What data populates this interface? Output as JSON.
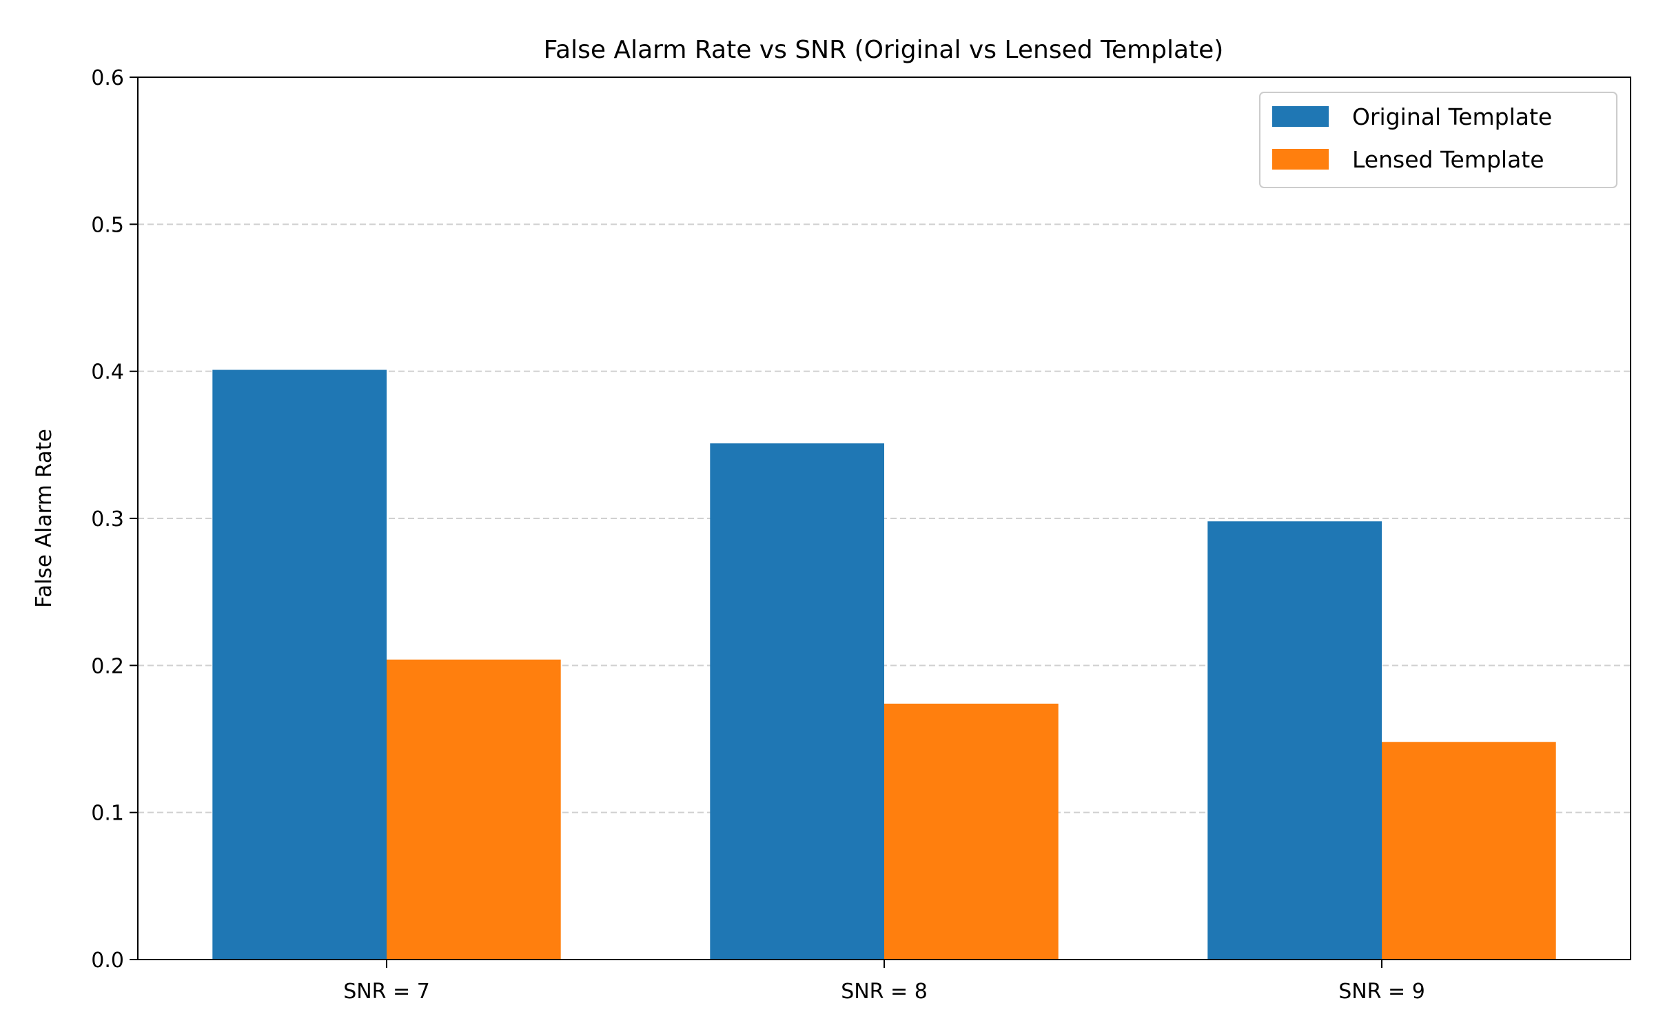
{
  "chart_data": {
    "type": "bar",
    "title": "False Alarm Rate vs SNR (Original vs Lensed Template)",
    "xlabel": "",
    "ylabel": "False Alarm Rate",
    "categories": [
      "SNR = 7",
      "SNR = 8",
      "SNR = 9"
    ],
    "series": [
      {
        "name": "Original Template",
        "color": "#1f77b4",
        "values": [
          0.401,
          0.351,
          0.298
        ]
      },
      {
        "name": "Lensed Template",
        "color": "#ff7f0e",
        "values": [
          0.204,
          0.174,
          0.148
        ]
      }
    ],
    "ylim": [
      0,
      0.6
    ],
    "yticks": [
      "0.0",
      "0.1",
      "0.2",
      "0.3",
      "0.4",
      "0.5",
      "0.6"
    ],
    "grid": {
      "y": true,
      "x": false,
      "style": "dashed"
    },
    "legend_position": "top-right"
  }
}
